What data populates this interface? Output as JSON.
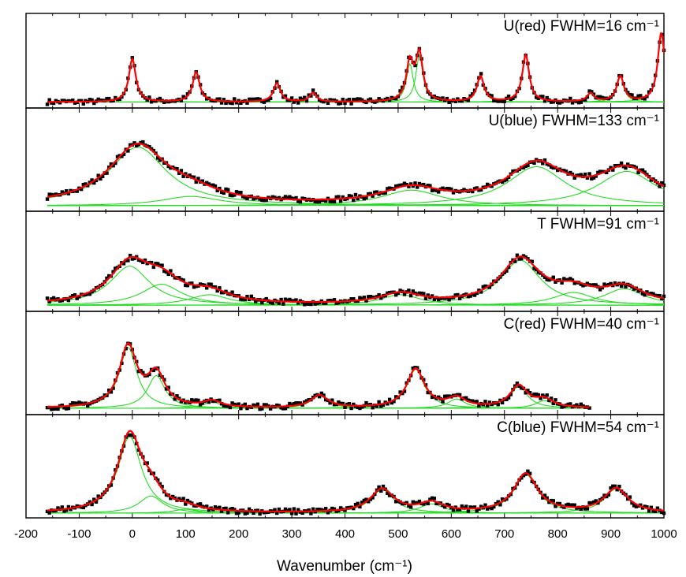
{
  "colors": {
    "data": "#000000",
    "fit": "#ff0000",
    "components": "#22dd22",
    "axis": "#000000"
  },
  "chart_data": {
    "type": "line",
    "xlabel": "Wavenumber (cm⁻¹)",
    "xlim": [
      -200,
      1000
    ],
    "xticks": [
      -200,
      -100,
      0,
      100,
      200,
      300,
      400,
      500,
      600,
      700,
      800,
      900,
      1000
    ],
    "panels": [
      {
        "label": "U(red) FWHM=16 cm⁻¹",
        "baseline": 0.04,
        "ymax": 1.0,
        "width": 16,
        "xend": 1000,
        "peaks": [
          {
            "x": 0,
            "h": 0.62
          },
          {
            "x": 120,
            "h": 0.43
          },
          {
            "x": 272,
            "h": 0.27
          },
          {
            "x": 340,
            "h": 0.13
          },
          {
            "x": 522,
            "h": 0.55
          },
          {
            "x": 540,
            "h": 0.67
          },
          {
            "x": 655,
            "h": 0.37
          },
          {
            "x": 740,
            "h": 0.67
          },
          {
            "x": 862,
            "h": 0.12
          },
          {
            "x": 918,
            "h": 0.37
          },
          {
            "x": 995,
            "h": 1.0
          }
        ]
      },
      {
        "label": "U(blue) FWHM=133 cm⁻¹",
        "baseline": 0.03,
        "ymax": 1.0,
        "width": 133,
        "xend": 1000,
        "peaks": [
          {
            "x": 10,
            "h": 0.75
          },
          {
            "x": 110,
            "h": 0.12
          },
          {
            "x": 525,
            "h": 0.2
          },
          {
            "x": 760,
            "h": 0.5
          },
          {
            "x": 930,
            "h": 0.44
          }
        ]
      },
      {
        "label": "T FWHM=91 cm⁻¹",
        "baseline": 0.04,
        "ymax": 1.0,
        "width": 91,
        "xend": 1000,
        "peaks": [
          {
            "x": -5,
            "h": 0.52
          },
          {
            "x": 55,
            "h": 0.28
          },
          {
            "x": 145,
            "h": 0.14
          },
          {
            "x": 505,
            "h": 0.14
          },
          {
            "x": 730,
            "h": 0.6
          },
          {
            "x": 830,
            "h": 0.17
          },
          {
            "x": 925,
            "h": 0.22
          }
        ]
      },
      {
        "label": "C(red) FWHM=40 cm⁻¹",
        "baseline": 0.04,
        "ymax": 1.0,
        "width": 40,
        "xend": 860,
        "peaks": [
          {
            "x": -8,
            "h": 0.78
          },
          {
            "x": 45,
            "h": 0.42
          },
          {
            "x": 150,
            "h": 0.08
          },
          {
            "x": 352,
            "h": 0.16
          },
          {
            "x": 533,
            "h": 0.5
          },
          {
            "x": 610,
            "h": 0.12
          },
          {
            "x": 727,
            "h": 0.28
          },
          {
            "x": 775,
            "h": 0.1
          }
        ]
      },
      {
        "label": "C(blue) FWHM=54 cm⁻¹",
        "baseline": 0.02,
        "ymax": 1.0,
        "width": 54,
        "xend": 1000,
        "peaks": [
          {
            "x": -5,
            "h": 0.98
          },
          {
            "x": 35,
            "h": 0.22
          },
          {
            "x": 100,
            "h": 0.05
          },
          {
            "x": 470,
            "h": 0.3
          },
          {
            "x": 563,
            "h": 0.12
          },
          {
            "x": 740,
            "h": 0.5
          },
          {
            "x": 910,
            "h": 0.31
          }
        ]
      }
    ]
  }
}
